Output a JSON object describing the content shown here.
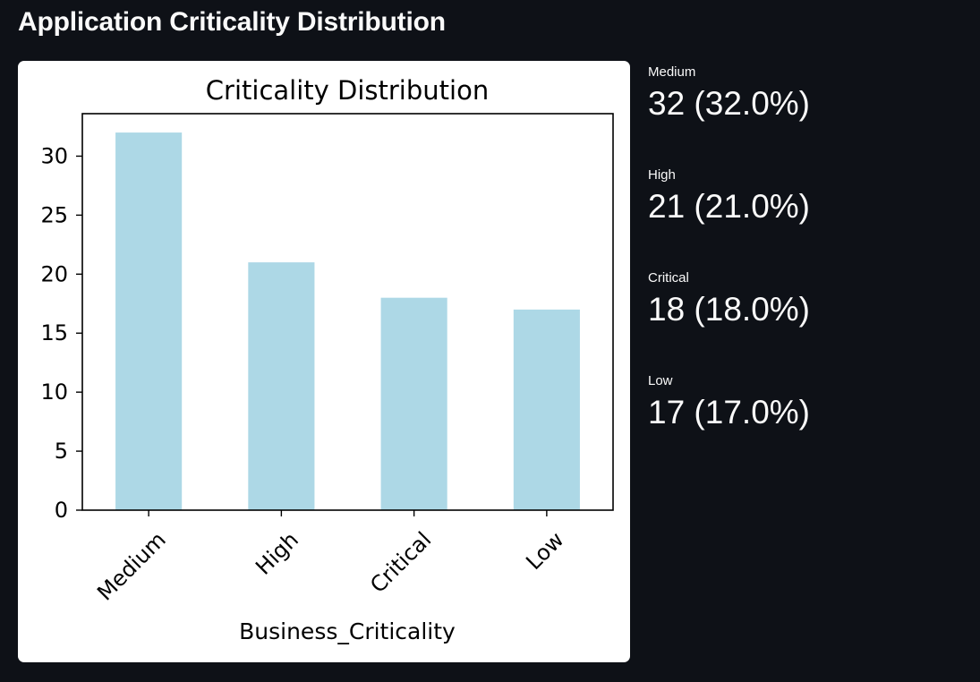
{
  "page": {
    "title": "Application Criticality Distribution"
  },
  "chart_data": {
    "type": "bar",
    "title": "Criticality Distribution",
    "xlabel": "Business_Criticality",
    "ylabel": "",
    "categories": [
      "Medium",
      "High",
      "Critical",
      "Low"
    ],
    "values": [
      32,
      21,
      18,
      17
    ],
    "ylim": [
      0,
      33.6
    ],
    "yticks": [
      0,
      5,
      10,
      15,
      20,
      25,
      30
    ],
    "xtick_rotation_deg": 45,
    "bar_color": "#add8e6",
    "grid": false,
    "legend": "none"
  },
  "metrics": [
    {
      "label": "Medium",
      "value": "32 (32.0%)"
    },
    {
      "label": "High",
      "value": "21 (21.0%)"
    },
    {
      "label": "Critical",
      "value": "18 (18.0%)"
    },
    {
      "label": "Low",
      "value": "17 (17.0%)"
    }
  ],
  "colors": {
    "background": "#0e1117",
    "card": "#ffffff",
    "text": "#fafafa"
  }
}
